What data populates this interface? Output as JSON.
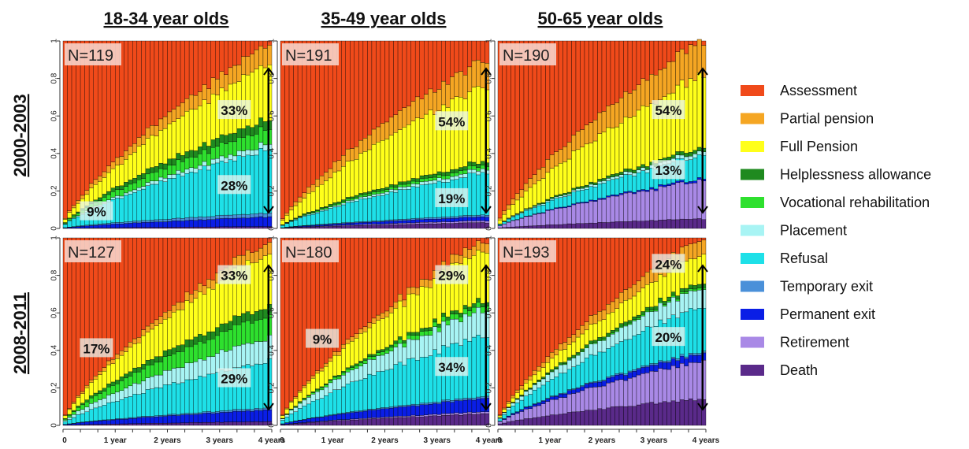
{
  "chart_data": {
    "type": "bar",
    "stacked": true,
    "columns": [
      "18-34 year olds",
      "35-49 year olds",
      "50-65 year olds"
    ],
    "rows": [
      "2000-2003",
      "2008-2011"
    ],
    "x_ticks": [
      "0",
      "1 year",
      "2 years",
      "3 years",
      "4 years"
    ],
    "y_ticks": [
      "0",
      "0.2",
      "0.4",
      "0.6",
      "0.8",
      "1"
    ],
    "ylim": [
      0,
      1
    ],
    "legend": [
      {
        "name": "Assessment",
        "color": "#f04a1a"
      },
      {
        "name": "Partial pension",
        "color": "#f5a623"
      },
      {
        "name": "Full Pension",
        "color": "#ffff1a"
      },
      {
        "name": "Helplessness allowance",
        "color": "#1f8a1f"
      },
      {
        "name": "Vocational rehabilitation",
        "color": "#2ee02e"
      },
      {
        "name": "Placement",
        "color": "#a8f4f4"
      },
      {
        "name": "Refusal",
        "color": "#1ee0e8"
      },
      {
        "name": "Temporary exit",
        "color": "#4a90d9"
      },
      {
        "name": "Permanent exit",
        "color": "#0a1ee6"
      },
      {
        "name": "Retirement",
        "color": "#a989e6"
      },
      {
        "name": "Death",
        "color": "#5a2a8a"
      }
    ],
    "state_keys": [
      "death",
      "retirement",
      "permanent",
      "temporary",
      "refusal",
      "placement",
      "vocational",
      "helpless",
      "full",
      "partial"
    ],
    "panels": [
      {
        "row": 0,
        "col": 0,
        "n_label": "N=119",
        "end": {
          "death": 0.01,
          "retirement": 0.0,
          "permanent": 0.05,
          "temporary": 0.02,
          "refusal": 0.33,
          "placement": 0.03,
          "vocational": 0.08,
          "helpless": 0.05,
          "full": 0.29,
          "partial": 0.1
        },
        "pct": [
          {
            "text": "33%",
            "y": 0.63
          },
          {
            "text": "28%",
            "y": 0.23
          },
          {
            "text": "9%",
            "y": 0.09,
            "x": 0.16
          }
        ]
      },
      {
        "row": 0,
        "col": 1,
        "n_label": "N=191",
        "end": {
          "death": 0.03,
          "retirement": 0.01,
          "permanent": 0.02,
          "temporary": 0.01,
          "refusal": 0.22,
          "placement": 0.02,
          "vocational": 0.02,
          "helpless": 0.02,
          "full": 0.4,
          "partial": 0.14
        },
        "pct": [
          {
            "text": "54%",
            "y": 0.57
          },
          {
            "text": "19%",
            "y": 0.16
          }
        ]
      },
      {
        "row": 0,
        "col": 2,
        "n_label": "N=190",
        "end": {
          "death": 0.05,
          "retirement": 0.2,
          "permanent": 0.01,
          "temporary": 0.0,
          "refusal": 0.12,
          "placement": 0.02,
          "vocational": 0.0,
          "helpless": 0.02,
          "full": 0.38,
          "partial": 0.18
        },
        "pct": [
          {
            "text": "54%",
            "y": 0.63
          },
          {
            "text": "13%",
            "y": 0.31
          }
        ]
      },
      {
        "row": 1,
        "col": 0,
        "n_label": "N=127",
        "end": {
          "death": 0.02,
          "retirement": 0.0,
          "permanent": 0.06,
          "temporary": 0.01,
          "refusal": 0.25,
          "placement": 0.12,
          "vocational": 0.12,
          "helpless": 0.05,
          "full": 0.28,
          "partial": 0.06
        },
        "pct": [
          {
            "text": "33%",
            "y": 0.8
          },
          {
            "text": "29%",
            "y": 0.25
          },
          {
            "text": "17%",
            "y": 0.41,
            "x": 0.16
          }
        ]
      },
      {
        "row": 1,
        "col": 1,
        "n_label": "N=180",
        "end": {
          "death": 0.06,
          "retirement": 0.01,
          "permanent": 0.07,
          "temporary": 0.01,
          "refusal": 0.32,
          "placement": 0.14,
          "vocational": 0.03,
          "helpless": 0.02,
          "full": 0.27,
          "partial": 0.05
        },
        "pct": [
          {
            "text": "29%",
            "y": 0.8
          },
          {
            "text": "34%",
            "y": 0.31
          },
          {
            "text": "9%",
            "y": 0.46,
            "x": 0.2
          }
        ]
      },
      {
        "row": 1,
        "col": 2,
        "n_label": "N=193",
        "end": {
          "death": 0.14,
          "retirement": 0.2,
          "permanent": 0.04,
          "temporary": 0.01,
          "refusal": 0.24,
          "placement": 0.1,
          "vocational": 0.01,
          "helpless": 0.02,
          "full": 0.15,
          "partial": 0.08
        },
        "pct": [
          {
            "text": "24%",
            "y": 0.86
          },
          {
            "text": "20%",
            "y": 0.47
          }
        ]
      }
    ]
  }
}
